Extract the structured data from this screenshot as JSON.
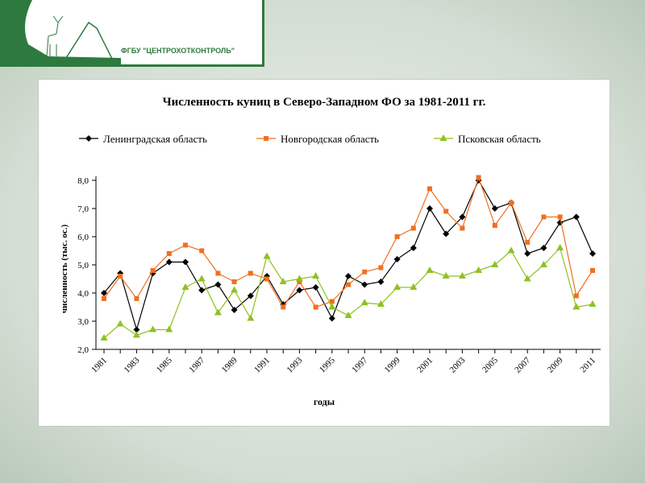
{
  "header": {
    "logo_text": "ФГБУ \"ЦЕНТРОХОТКОНТРОЛЬ\""
  },
  "chart_data": {
    "type": "line",
    "title": "Численность куниц в Северо-Западном ФО за 1981-2011 гг.",
    "xlabel": "годы",
    "ylabel": "численность (тыс. ос.)",
    "ylim": [
      2.0,
      8.0
    ],
    "yticks": [
      "2,0",
      "3,0",
      "4,0",
      "5,0",
      "6,0",
      "7,0",
      "8,0"
    ],
    "xticks": [
      "1981",
      "1983",
      "1985",
      "1987",
      "1989",
      "1991",
      "1993",
      "1995",
      "1997",
      "1999",
      "2001",
      "2003",
      "2005",
      "2007",
      "2009",
      "2011"
    ],
    "x": [
      1981,
      1982,
      1983,
      1984,
      1985,
      1986,
      1987,
      1988,
      1989,
      1990,
      1991,
      1992,
      1993,
      1994,
      1995,
      1996,
      1997,
      1998,
      1999,
      2000,
      2001,
      2002,
      2003,
      2004,
      2005,
      2006,
      2007,
      2008,
      2009,
      2010,
      2011
    ],
    "legend_position": "top",
    "series": [
      {
        "name": "Ленинградская область",
        "color": "#000000",
        "marker": "diamond",
        "values": [
          4.0,
          4.7,
          2.7,
          4.7,
          5.1,
          5.1,
          4.1,
          4.3,
          3.4,
          3.9,
          4.6,
          3.6,
          4.1,
          4.2,
          3.1,
          4.6,
          4.3,
          4.4,
          5.2,
          5.6,
          7.0,
          6.1,
          6.7,
          8.0,
          7.0,
          7.2,
          5.4,
          5.6,
          6.5,
          6.7,
          5.4
        ]
      },
      {
        "name": "Новгородская область",
        "color": "#f07020",
        "marker": "square",
        "values": [
          3.8,
          4.6,
          3.8,
          4.8,
          5.4,
          5.7,
          5.5,
          4.7,
          4.4,
          4.7,
          4.5,
          3.5,
          4.4,
          3.5,
          3.7,
          4.3,
          4.75,
          4.9,
          6.0,
          6.3,
          7.7,
          6.9,
          6.3,
          8.1,
          6.4,
          7.2,
          5.8,
          6.7,
          6.7,
          3.9,
          4.8
        ]
      },
      {
        "name": "Псковская область",
        "color": "#8dc21f",
        "marker": "triangle",
        "values": [
          2.4,
          2.9,
          2.5,
          2.7,
          2.7,
          4.2,
          4.5,
          3.3,
          4.1,
          3.1,
          5.3,
          4.4,
          4.5,
          4.6,
          3.5,
          3.2,
          3.65,
          3.6,
          4.2,
          4.2,
          4.8,
          4.6,
          4.6,
          4.8,
          5.0,
          5.5,
          4.5,
          5.0,
          5.6,
          3.5,
          3.6
        ]
      }
    ]
  }
}
